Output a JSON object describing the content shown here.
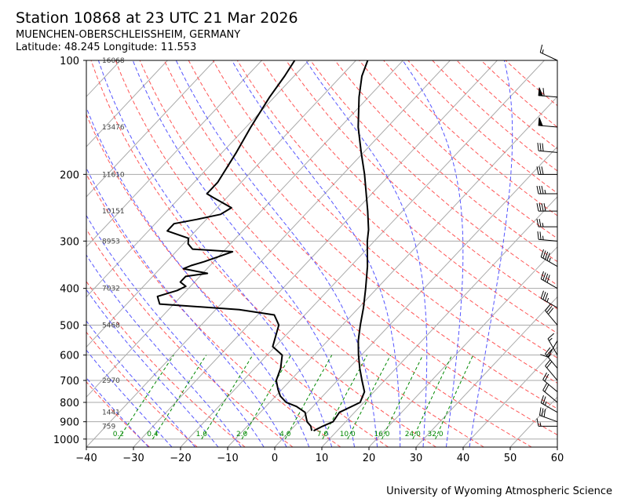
{
  "header": {
    "title": "Station 10868 at 23 UTC 21 Mar 2026",
    "location": "MUENCHEN-OBERSCHLEISSHEIM, GERMANY",
    "coords": "Latitude: 48.245 Longitude: 11.553"
  },
  "footer": {
    "credit": "University of Wyoming Atmospheric Science"
  },
  "chart_data": {
    "type": "line",
    "skew": "skew-T log-P",
    "xlabel": "",
    "ylabel": "",
    "xlim": [
      -40,
      60
    ],
    "ylim": [
      1050,
      100
    ],
    "y_log_scale": true,
    "grid": true,
    "x_ticks": [
      -40,
      -30,
      -20,
      -10,
      0,
      10,
      20,
      30,
      40,
      50,
      60
    ],
    "y_ticks": [
      100,
      200,
      300,
      400,
      500,
      600,
      700,
      800,
      900,
      1000
    ],
    "height_labels": [
      {
        "p": 100,
        "text": "16068"
      },
      {
        "p": 150,
        "text": "13476"
      },
      {
        "p": 200,
        "text": "11610"
      },
      {
        "p": 250,
        "text": "10151"
      },
      {
        "p": 300,
        "text": "8953"
      },
      {
        "p": 400,
        "text": "7032"
      },
      {
        "p": 500,
        "text": "5468"
      },
      {
        "p": 700,
        "text": "2970"
      },
      {
        "p": 850,
        "text": "1441"
      },
      {
        "p": 925,
        "text": "759"
      }
    ],
    "mixing_ratio_labels": [
      "0.2",
      "0.4",
      "1.0",
      "2.0",
      "4.0",
      "7.0",
      "10.0",
      "16.0",
      "24.0",
      "32.0"
    ],
    "mixing_ratios": [
      0.2,
      0.4,
      1.0,
      2.0,
      4.0,
      7.0,
      10.0,
      16.0,
      24.0,
      32.0
    ],
    "colors": {
      "temperature": "#000000",
      "dewpoint": "#000000",
      "dry_adiabat": "#ff5555",
      "moist_adiabat": "#5555ff",
      "mixing_ratio": "#008800",
      "isotherm": "#aaaaaa",
      "isobar": "#aaaaaa"
    },
    "series": [
      {
        "values": [
          [
            951,
            5.0
          ],
          [
            925,
            6.0
          ],
          [
            900,
            7.3
          ],
          [
            850,
            6.8
          ],
          [
            800,
            9.2
          ],
          [
            750,
            8.0
          ],
          [
            700,
            5.2
          ],
          [
            650,
            2.3
          ],
          [
            600,
            -0.6
          ],
          [
            550,
            -3.5
          ],
          [
            500,
            -6.2
          ],
          [
            450,
            -9.0
          ],
          [
            400,
            -12.4
          ],
          [
            350,
            -16.4
          ],
          [
            300,
            -21.5
          ],
          [
            280,
            -23.5
          ],
          [
            250,
            -27.4
          ],
          [
            200,
            -35.4
          ],
          [
            175,
            -40.5
          ],
          [
            150,
            -46.2
          ],
          [
            125,
            -52.0
          ],
          [
            110,
            -55.6
          ],
          [
            100,
            -57.5
          ]
        ]
      },
      {
        "values": [
          [
            951,
            4.6
          ],
          [
            925,
            3.5
          ],
          [
            900,
            1.8
          ],
          [
            850,
            -0.5
          ],
          [
            820,
            -3.5
          ],
          [
            800,
            -6.5
          ],
          [
            770,
            -9.0
          ],
          [
            740,
            -10.8
          ],
          [
            700,
            -13.0
          ],
          [
            650,
            -14.5
          ],
          [
            600,
            -16.8
          ],
          [
            570,
            -20.5
          ],
          [
            500,
            -23.5
          ],
          [
            470,
            -26.5
          ],
          [
            455,
            -35.0
          ],
          [
            440,
            -53.0
          ],
          [
            420,
            -55.0
          ],
          [
            405,
            -52.0
          ],
          [
            395,
            -51.0
          ],
          [
            385,
            -53.0
          ],
          [
            372,
            -53.0
          ],
          [
            365,
            -49.0
          ],
          [
            355,
            -55.0
          ],
          [
            348,
            -54.0
          ],
          [
            340,
            -52.0
          ],
          [
            330,
            -50.0
          ],
          [
            320,
            -48.0
          ],
          [
            315,
            -57.0
          ],
          [
            305,
            -59.0
          ],
          [
            295,
            -60.0
          ],
          [
            282,
            -66.0
          ],
          [
            270,
            -66.0
          ],
          [
            263,
            -62.0
          ],
          [
            255,
            -58.0
          ],
          [
            245,
            -57.0
          ],
          [
            230,
            -63.0
          ],
          [
            225,
            -65.0
          ],
          [
            210,
            -65.0
          ],
          [
            175,
            -67.0
          ],
          [
            150,
            -69.0
          ],
          [
            125,
            -71.0
          ],
          [
            110,
            -72.0
          ],
          [
            100,
            -73.0
          ]
        ]
      }
    ],
    "wind_barbs": [
      {
        "p": 100,
        "dir": 295,
        "kt": 15
      },
      {
        "p": 125,
        "dir": 275,
        "kt": 60
      },
      {
        "p": 150,
        "dir": 275,
        "kt": 50
      },
      {
        "p": 175,
        "dir": 275,
        "kt": 30
      },
      {
        "p": 200,
        "dir": 270,
        "kt": 30
      },
      {
        "p": 225,
        "dir": 270,
        "kt": 35
      },
      {
        "p": 250,
        "dir": 270,
        "kt": 40
      },
      {
        "p": 275,
        "dir": 270,
        "kt": 25
      },
      {
        "p": 300,
        "dir": 275,
        "kt": 25
      },
      {
        "p": 350,
        "dir": 300,
        "kt": 45
      },
      {
        "p": 400,
        "dir": 300,
        "kt": 40
      },
      {
        "p": 450,
        "dir": 300,
        "kt": 35
      },
      {
        "p": 500,
        "dir": 320,
        "kt": 30
      },
      {
        "p": 550,
        "dir": 210,
        "kt": 10
      },
      {
        "p": 600,
        "dir": 330,
        "kt": 15
      },
      {
        "p": 650,
        "dir": 320,
        "kt": 25
      },
      {
        "p": 700,
        "dir": 320,
        "kt": 20
      },
      {
        "p": 750,
        "dir": 310,
        "kt": 20
      },
      {
        "p": 800,
        "dir": 310,
        "kt": 20
      },
      {
        "p": 850,
        "dir": 300,
        "kt": 25
      },
      {
        "p": 900,
        "dir": 290,
        "kt": 30
      },
      {
        "p": 925,
        "dir": 270,
        "kt": 15
      }
    ]
  }
}
